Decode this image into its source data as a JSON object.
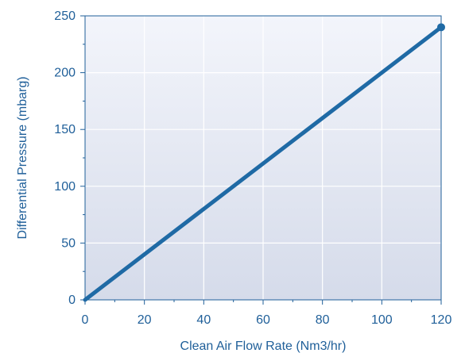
{
  "chart_data": {
    "type": "line",
    "title": "",
    "xlabel": "Clean Air Flow Rate (Nm3/hr)",
    "ylabel": "Differential Pressure (mbarg)",
    "xlim": [
      0,
      120
    ],
    "ylim": [
      0,
      250
    ],
    "x_ticks": [
      0,
      20,
      40,
      60,
      80,
      100,
      120
    ],
    "y_ticks": [
      0,
      50,
      100,
      150,
      200,
      250
    ],
    "grid": true,
    "series": [
      {
        "x": [
          0,
          120
        ],
        "y": [
          0,
          240
        ],
        "color": "#1f6aa5",
        "end_marker": true
      }
    ]
  },
  "colors": {
    "plot_background_top": "#f3f5fb",
    "plot_background_bottom": "#d5dbea",
    "grid": "#ffffff",
    "axis": "#1f5f99",
    "text": "#1f5f99",
    "line": "#1f6aa5"
  }
}
